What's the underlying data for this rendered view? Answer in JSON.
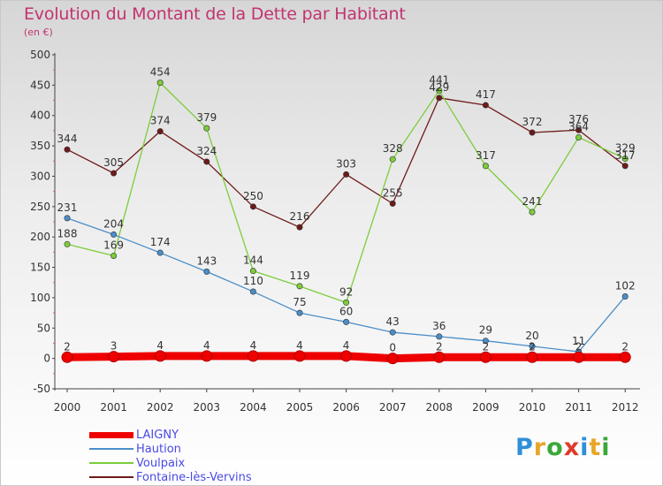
{
  "header": {
    "title": "Evolution du Montant de la Dette par Habitant",
    "unit": "(en €)"
  },
  "logo": {
    "letters": [
      "P",
      "r",
      "o",
      "x",
      "i",
      "t",
      "i"
    ],
    "colors": [
      "#2f8fd8",
      "#e8a628",
      "#3aa83a",
      "#e03a2a",
      "#2f8fd8",
      "#e8a628",
      "#3aa83a"
    ]
  },
  "chart_data": {
    "type": "line",
    "title": "Evolution du Montant de la Dette par Habitant",
    "subtitle": "(en €)",
    "xlabel": "",
    "ylabel": "",
    "ylim": [
      -50,
      500
    ],
    "yticks": [
      "-50",
      "0",
      "50",
      "100",
      "150",
      "200",
      "250",
      "300",
      "350",
      "400",
      "450",
      "500"
    ],
    "categories": [
      "2000",
      "2001",
      "2002",
      "2003",
      "2004",
      "2005",
      "2006",
      "2007",
      "2008",
      "2009",
      "2010",
      "2011",
      "2012"
    ],
    "grid": false,
    "legend_position": "bottom-left",
    "series": [
      {
        "name": "LAIGNY",
        "color": "#ee0000",
        "values": [
          2,
          3,
          4,
          4,
          4,
          4,
          4,
          0,
          2,
          2,
          2,
          2,
          2
        ],
        "labels": [
          "2",
          "3",
          "4",
          "4",
          "4",
          "4",
          "4",
          "0",
          "2",
          "2",
          "2",
          "2",
          "2"
        ]
      },
      {
        "name": "Haution",
        "color": "#4a8ec8",
        "values": [
          231,
          204,
          174,
          143,
          110,
          75,
          60,
          43,
          36,
          29,
          20,
          11,
          102
        ],
        "labels": [
          "231",
          "204",
          "174",
          "143",
          "110",
          "75",
          "60",
          "43",
          "36",
          "29",
          "20",
          "11",
          "102"
        ]
      },
      {
        "name": "Voulpaix",
        "color": "#7ccd3c",
        "values": [
          188,
          169,
          454,
          379,
          144,
          119,
          92,
          328,
          441,
          317,
          241,
          364,
          329
        ],
        "labels": [
          "188",
          "169",
          "454",
          "379",
          "144",
          "119",
          "92",
          "328",
          "441",
          "317",
          "241",
          "364",
          "329"
        ]
      },
      {
        "name": "Fontaine-lès-Vervins",
        "color": "#6e1a1a",
        "values": [
          344,
          305,
          374,
          324,
          250,
          216,
          303,
          255,
          429,
          417,
          372,
          376,
          317
        ],
        "labels": [
          "344",
          "305",
          "374",
          "324",
          "250",
          "216",
          "303",
          "255",
          "429",
          "417",
          "372",
          "376",
          "317"
        ]
      }
    ]
  }
}
